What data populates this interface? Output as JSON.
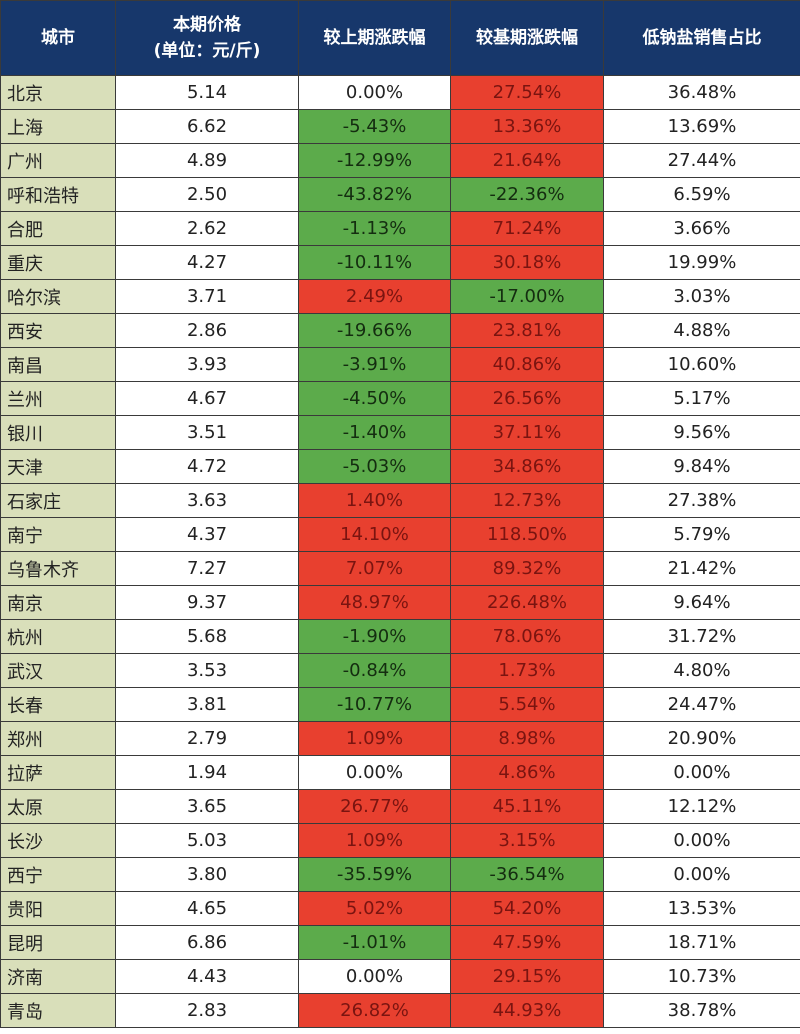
{
  "table": {
    "header": [
      [
        "城市"
      ],
      [
        "本期价格",
        "(单位：元/斤)"
      ],
      [
        "较上期涨跌幅"
      ],
      [
        "较基期涨跌幅"
      ],
      [
        "低钠盐销售占比"
      ]
    ],
    "rows": [
      [
        "北京",
        "5.14",
        "0.00%",
        "27.54%",
        "36.48%"
      ],
      [
        "上海",
        "6.62",
        "-5.43%",
        "13.36%",
        "13.69%"
      ],
      [
        "广州",
        "4.89",
        "-12.99%",
        "21.64%",
        "27.44%"
      ],
      [
        "呼和浩特",
        "2.50",
        "-43.82%",
        "-22.36%",
        "6.59%"
      ],
      [
        "合肥",
        "2.62",
        "-1.13%",
        "71.24%",
        "3.66%"
      ],
      [
        "重庆",
        "4.27",
        "-10.11%",
        "30.18%",
        "19.99%"
      ],
      [
        "哈尔滨",
        "3.71",
        "2.49%",
        "-17.00%",
        "3.03%"
      ],
      [
        "西安",
        "2.86",
        "-19.66%",
        "23.81%",
        "4.88%"
      ],
      [
        "南昌",
        "3.93",
        "-3.91%",
        "40.86%",
        "10.60%"
      ],
      [
        "兰州",
        "4.67",
        "-4.50%",
        "26.56%",
        "5.17%"
      ],
      [
        "银川",
        "3.51",
        "-1.40%",
        "37.11%",
        "9.56%"
      ],
      [
        "天津",
        "4.72",
        "-5.03%",
        "34.86%",
        "9.84%"
      ],
      [
        "石家庄",
        "3.63",
        "1.40%",
        "12.73%",
        "27.38%"
      ],
      [
        "南宁",
        "4.37",
        "14.10%",
        "118.50%",
        "5.79%"
      ],
      [
        "乌鲁木齐",
        "7.27",
        "7.07%",
        "89.32%",
        "21.42%"
      ],
      [
        "南京",
        "9.37",
        "48.97%",
        "226.48%",
        "9.64%"
      ],
      [
        "杭州",
        "5.68",
        "-1.90%",
        "78.06%",
        "31.72%"
      ],
      [
        "武汉",
        "3.53",
        "-0.84%",
        "1.73%",
        "4.80%"
      ],
      [
        "长春",
        "3.81",
        "-10.77%",
        "5.54%",
        "24.47%"
      ],
      [
        "郑州",
        "2.79",
        "1.09%",
        "8.98%",
        "20.90%"
      ],
      [
        "拉萨",
        "1.94",
        "0.00%",
        "4.86%",
        "0.00%"
      ],
      [
        "太原",
        "3.65",
        "26.77%",
        "45.11%",
        "12.12%"
      ],
      [
        "长沙",
        "5.03",
        "1.09%",
        "3.15%",
        "0.00%"
      ],
      [
        "西宁",
        "3.80",
        "-35.59%",
        "-36.54%",
        "0.00%"
      ],
      [
        "贵阳",
        "4.65",
        "5.02%",
        "54.20%",
        "13.53%"
      ],
      [
        "昆明",
        "6.86",
        "-1.01%",
        "47.59%",
        "18.71%"
      ],
      [
        "济南",
        "4.43",
        "0.00%",
        "29.15%",
        "10.73%"
      ],
      [
        "青岛",
        "2.83",
        "26.82%",
        "44.93%",
        "38.78%"
      ]
    ]
  }
}
